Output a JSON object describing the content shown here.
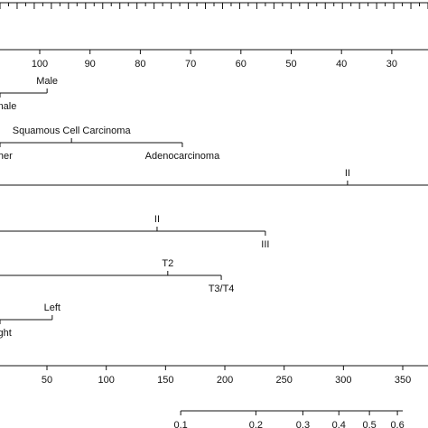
{
  "chart_data": {
    "type": "nomogram",
    "axes": [
      {
        "kind": "points",
        "xlim": [
          0,
          100
        ]
      },
      {
        "kind": "continuous",
        "xlim": [
          107.9,
          22.8
        ],
        "xticks": [
          100,
          90,
          80,
          70,
          60,
          50,
          40,
          30
        ]
      },
      {
        "kind": "categorical",
        "levels": [
          {
            "label": "Female",
            "points": 0,
            "side": "below"
          },
          {
            "label": "Male",
            "points": 11,
            "side": "above"
          }
        ]
      },
      {
        "kind": "categorical",
        "levels": [
          {
            "label": "Other",
            "points": 0,
            "side": "below"
          },
          {
            "label": "Squamous Cell Carcinoma",
            "points": 16.7,
            "side": "above"
          },
          {
            "label": "Adenocarcinoma",
            "points": 42.6,
            "side": "below"
          }
        ]
      },
      {
        "kind": "categorical",
        "levels": [
          {
            "label": "II",
            "points": 81.2,
            "side": "above"
          }
        ],
        "full": true
      },
      {
        "kind": "categorical",
        "levels": [
          {
            "label": "II",
            "points": 36.7,
            "side": "above"
          },
          {
            "label": "III",
            "points": 62,
            "side": "below"
          }
        ]
      },
      {
        "kind": "categorical",
        "levels": [
          {
            "label": "T2",
            "points": 39.2,
            "side": "above"
          },
          {
            "label": "T3/T4",
            "points": 51.7,
            "side": "below"
          }
        ]
      },
      {
        "kind": "categorical",
        "levels": [
          {
            "label": "Right",
            "points": 0,
            "side": "below"
          },
          {
            "label": "Left",
            "points": 12.2,
            "side": "above"
          }
        ]
      },
      {
        "kind": "continuous",
        "xlim": [
          10.4,
          371.3
        ],
        "xticks": [
          50,
          100,
          150,
          200,
          250,
          300,
          350
        ]
      },
      {
        "kind": "probability",
        "scale": "cloglog",
        "xlim": [
          0.0172,
          0.7117
        ],
        "xticks": [
          0.1,
          0.2,
          0.3,
          0.4,
          0.5,
          0.6
        ]
      }
    ]
  }
}
